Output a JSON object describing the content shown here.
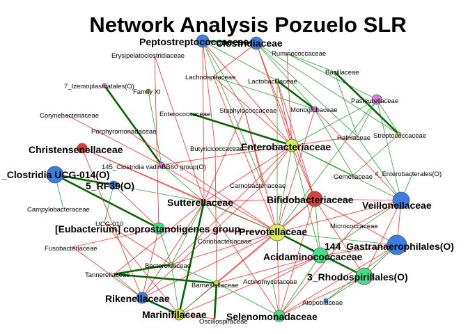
{
  "title": "Network Analysis Pozuelo SLR",
  "colors": {
    "positive_edge": "#2ca02c",
    "positive_edge_strong": "#006400",
    "negative_edge": "#ff2a2a",
    "node_border": "#555555"
  },
  "nodes": [
    {
      "id": "peptostrep",
      "label": "Peptostreptococcaceae",
      "big": true,
      "color": "#3b7de0"
    },
    {
      "id": "clostridiaceae",
      "label": "Clostridiaceae",
      "big": true,
      "color": "#3b7de0"
    },
    {
      "id": "erysipelato",
      "label": "Erysipelatoclostridiaceae",
      "big": false,
      "color": ""
    },
    {
      "id": "ruminococ",
      "label": "Ruminococcaceae",
      "big": false,
      "color": ""
    },
    {
      "id": "bacillaceae",
      "label": "Bacillaceae",
      "big": false,
      "color": ""
    },
    {
      "id": "izemoplasmatales",
      "label": "7_Izemoplasmatales(O)",
      "big": false,
      "color": "#e07be0"
    },
    {
      "id": "familyxi",
      "label": "Family XI",
      "big": false,
      "color": "#ccdd33"
    },
    {
      "id": "lachnospir",
      "label": "Lachnospiraceae",
      "big": false,
      "color": ""
    },
    {
      "id": "lactobacill",
      "label": "Lactobacillaceae",
      "big": false,
      "color": "#ccdd33"
    },
    {
      "id": "pasteurell",
      "label": "Pasteurellaceae",
      "big": false,
      "color": "#e07be0"
    },
    {
      "id": "corynebact",
      "label": "Corynebacteriaceae",
      "big": false,
      "color": ""
    },
    {
      "id": "enterococ",
      "label": "Enterococcaceae",
      "big": false,
      "color": ""
    },
    {
      "id": "staphylococ",
      "label": "Staphylococcaceae",
      "big": false,
      "color": ""
    },
    {
      "id": "monoglob",
      "label": "Monoglobaceae",
      "big": false,
      "color": "#e07be0"
    },
    {
      "id": "porphyromon",
      "label": "Porphyromonadaceae",
      "big": false,
      "color": ""
    },
    {
      "id": "hafniaceae",
      "label": "Hafniaceae",
      "big": false,
      "color": ""
    },
    {
      "id": "streptococ",
      "label": "Streptococcaceae",
      "big": false,
      "color": "#ccdd33"
    },
    {
      "id": "christensen",
      "label": "Christensenellaceae",
      "big": true,
      "color": "#e03c3c"
    },
    {
      "id": "butyricicoc",
      "label": "Butyricicoccaceae",
      "big": false,
      "color": ""
    },
    {
      "id": "enterobact",
      "label": "Enterobacteriaceae",
      "big": true,
      "color": "#d8ee55"
    },
    {
      "id": "clostvadin",
      "label": "145_Clostridia vadinBB60 group(O)",
      "big": false,
      "color": "#e07be0"
    },
    {
      "id": "gemellaceae",
      "label": "Gemellaceae",
      "big": false,
      "color": ""
    },
    {
      "id": "enterobacterales",
      "label": "4_Enterobacterales(O)",
      "big": false,
      "color": ""
    },
    {
      "id": "clostucg014",
      "label": "_Clostridia UCG-014(O)",
      "big": true,
      "color": "#3b7de0"
    },
    {
      "id": "rf39",
      "label": "5_RF39(O)",
      "big": true,
      "color": "#3b7de0"
    },
    {
      "id": "carnobact",
      "label": "Carnobacteriaceae",
      "big": false,
      "color": ""
    },
    {
      "id": "bifidobact",
      "label": "Bifidobacteriaceae",
      "big": true,
      "color": "#e03c3c"
    },
    {
      "id": "veillonell",
      "label": "Veillonellaceae",
      "big": true,
      "color": "#3b7de0"
    },
    {
      "id": "campylobact",
      "label": "Campylobacteraceae",
      "big": false,
      "color": ""
    },
    {
      "id": "sutterell",
      "label": "Sutterellaceae",
      "big": true,
      "color": ""
    },
    {
      "id": "ucg010",
      "label": "UCG-010",
      "big": false,
      "color": ""
    },
    {
      "id": "eubacterium",
      "label": "[Eubacterium] coprostanoligenes group",
      "big": true,
      "color": "#44dd88"
    },
    {
      "id": "prevotell",
      "label": "Prevotellaceae",
      "big": true,
      "color": "#d8ee55"
    },
    {
      "id": "micrococ",
      "label": "Micrococcaceae",
      "big": false,
      "color": ""
    },
    {
      "id": "coriobact",
      "label": "Coriobacteriaceae",
      "big": false,
      "color": ""
    },
    {
      "id": "fusobact",
      "label": "Fusobacteriaceae",
      "big": false,
      "color": ""
    },
    {
      "id": "gastranaero",
      "label": "144_Gastranaerophilales(O)",
      "big": true,
      "color": "#3b7de0"
    },
    {
      "id": "acidaminococ",
      "label": "Acidaminococcaceae",
      "big": true,
      "color": "#44dd88"
    },
    {
      "id": "bacteroid",
      "label": "Bacteroidaceae",
      "big": false,
      "color": "#ccdd33"
    },
    {
      "id": "rhodospir",
      "label": "3_Rhodospirillales(O)",
      "big": true,
      "color": "#44dd88"
    },
    {
      "id": "tannerell",
      "label": "Tannerellaceae",
      "big": false,
      "color": ""
    },
    {
      "id": "actinomycet",
      "label": "Actinomycetaceae",
      "big": false,
      "color": ""
    },
    {
      "id": "barnesiell",
      "label": "Barnesiellaceae",
      "big": false,
      "color": "#ccdd33"
    },
    {
      "id": "rikenell",
      "label": "Rikenellaceae",
      "big": true,
      "color": "#3b7de0"
    },
    {
      "id": "atopobi",
      "label": "Atopobiaceae",
      "big": false,
      "color": "#3b7de0"
    },
    {
      "id": "marinifil",
      "label": "Marinifilaceae",
      "big": true,
      "color": "#ccdd33"
    },
    {
      "id": "selenomonad",
      "label": "Selenomonadaceae",
      "big": true,
      "color": "#44dd88"
    },
    {
      "id": "oscillospir",
      "label": "Oscillospiraceae",
      "big": false,
      "color": ""
    }
  ],
  "edges": [
    [
      "peptostrep",
      "clostridiaceae",
      "strong"
    ],
    [
      "clostridiaceae",
      "monoglob",
      "pos"
    ],
    [
      "clostridiaceae",
      "streptococ",
      "pos"
    ],
    [
      "clostridiaceae",
      "lachnospir",
      "neg"
    ],
    [
      "clostridiaceae",
      "bifidobact",
      "neg"
    ],
    [
      "clostridiaceae",
      "enterobact",
      "neg"
    ],
    [
      "clostridiaceae",
      "hafniaceae",
      "pos"
    ],
    [
      "peptostrep",
      "staphylococ",
      "pos"
    ],
    [
      "peptostrep",
      "enterobact",
      "neg"
    ],
    [
      "peptostrep",
      "butyricicoc",
      "neg"
    ],
    [
      "peptostrep",
      "carnobact",
      "pos"
    ],
    [
      "peptostrep",
      "lactobacill",
      "pos"
    ],
    [
      "peptostrep",
      "sutterell",
      "neg"
    ],
    [
      "ruminococ",
      "bacillaceae",
      "pos"
    ],
    [
      "ruminococ",
      "pasteurell",
      "pos"
    ],
    [
      "ruminococ",
      "enterobact",
      "neg"
    ],
    [
      "bacillaceae",
      "streptococ",
      "strong"
    ],
    [
      "bacillaceae",
      "hafniaceae",
      "pos"
    ],
    [
      "lactobacill",
      "monoglob",
      "strong"
    ],
    [
      "lactobacill",
      "enterobact",
      "neg"
    ],
    [
      "lactobacill",
      "prevotell",
      "pos"
    ],
    [
      "lactobacill",
      "bifidobact",
      "neg"
    ],
    [
      "lachnospir",
      "enterobact",
      "neg"
    ],
    [
      "lachnospir",
      "prevotell",
      "neg"
    ],
    [
      "lachnospir",
      "monoglob",
      "pos"
    ],
    [
      "staphylococ",
      "carnobact",
      "neg"
    ],
    [
      "staphylococ",
      "prevotell",
      "neg"
    ],
    [
      "staphylococ",
      "sutterell",
      "neg"
    ],
    [
      "enterococ",
      "enterobact",
      "strong"
    ],
    [
      "monoglob",
      "gemellaceae",
      "pos"
    ],
    [
      "monoglob",
      "prevotell",
      "neg"
    ],
    [
      "monoglob",
      "veillonell",
      "neg"
    ],
    [
      "pasteurell",
      "streptococ",
      "pos"
    ],
    [
      "pasteurell",
      "enterobact",
      "pos"
    ],
    [
      "pasteurell",
      "veillonell",
      "pos"
    ],
    [
      "pasteurell",
      "prevotell",
      "pos"
    ],
    [
      "pasteurell",
      "hafniaceae",
      "pos"
    ],
    [
      "hafniaceae",
      "enterobact",
      "neg"
    ],
    [
      "hafniaceae",
      "veillonell",
      "pos"
    ],
    [
      "streptococ",
      "gemellaceae",
      "pos"
    ],
    [
      "enterobact",
      "prevotell",
      "pos"
    ],
    [
      "enterobact",
      "bifidobact",
      "neg"
    ],
    [
      "enterobact",
      "gemellaceae",
      "pos"
    ],
    [
      "enterobact",
      "veillonell",
      "pos"
    ],
    [
      "enterobact",
      "acidaminococ",
      "pos"
    ],
    [
      "enterobact",
      "sutterell",
      "neg"
    ],
    [
      "enterobact",
      "clostvadin",
      "neg"
    ],
    [
      "enterobact",
      "butyricicoc",
      "pos"
    ],
    [
      "enterobact",
      "bacteroid",
      "neg"
    ],
    [
      "enterobact",
      "carnobact",
      "neg"
    ],
    [
      "butyricicoc",
      "barnesiell",
      "neg"
    ],
    [
      "izemoplasmatales",
      "clostvadin",
      "strong"
    ],
    [
      "familyxi",
      "clostvadin",
      "pos"
    ],
    [
      "erysipelato",
      "eubacterium",
      "neg"
    ],
    [
      "erysipelato",
      "sutterell",
      "neg"
    ],
    [
      "clostvadin",
      "prevotell",
      "neg"
    ],
    [
      "clostvadin",
      "sutterell",
      "pos"
    ],
    [
      "clostucg014",
      "rf39",
      "strong"
    ],
    [
      "clostucg014",
      "eubacterium",
      "strong"
    ],
    [
      "clostucg014",
      "campylobact",
      "pos"
    ],
    [
      "rf39",
      "ucg010",
      "pos"
    ],
    [
      "rf39",
      "sutterell",
      "pos"
    ],
    [
      "rf39",
      "eubacterium",
      "neg"
    ],
    [
      "christensen",
      "prevotell",
      "neg"
    ],
    [
      "christensen",
      "sutterell",
      "neg"
    ],
    [
      "christensen",
      "rikenell",
      "neg"
    ],
    [
      "bifidobact",
      "prevotell",
      "neg"
    ],
    [
      "bifidobact",
      "acidaminococ",
      "pos"
    ],
    [
      "bifidobact",
      "veillonell",
      "neg"
    ],
    [
      "bifidobact",
      "gastranaero",
      "neg"
    ],
    [
      "bifidobact",
      "rhodospir",
      "neg"
    ],
    [
      "bifidobact",
      "selenomonad",
      "neg"
    ],
    [
      "bifidobact",
      "sutterell",
      "neg"
    ],
    [
      "bifidobact",
      "marinifil",
      "neg"
    ],
    [
      "veillonell",
      "acidaminococ",
      "pos"
    ],
    [
      "veillonell",
      "prevotell",
      "neg"
    ],
    [
      "veillonell",
      "gastranaero",
      "neg"
    ],
    [
      "veillonell",
      "micrococ",
      "neg"
    ],
    [
      "veillonell",
      "rhodospir",
      "neg"
    ],
    [
      "gastranaero",
      "rhodospir",
      "pos"
    ],
    [
      "gastranaero",
      "acidaminococ",
      "neg"
    ],
    [
      "gastranaero",
      "prevotell",
      "pos"
    ],
    [
      "gastranaero",
      "atopobi",
      "pos"
    ],
    [
      "gastranaero",
      "selenomonad",
      "neg"
    ],
    [
      "prevotell",
      "acidaminococ",
      "pos"
    ],
    [
      "prevotell",
      "eubacterium",
      "neg"
    ],
    [
      "prevotell",
      "rhodospir",
      "strong"
    ],
    [
      "prevotell",
      "selenomonad",
      "neg"
    ],
    [
      "prevotell",
      "bacteroid",
      "neg"
    ],
    [
      "prevotell",
      "barnesiell",
      "neg"
    ],
    [
      "prevotell",
      "rikenell",
      "neg"
    ],
    [
      "prevotell",
      "sutterell",
      "pos"
    ],
    [
      "acidaminococ",
      "selenomonad",
      "pos"
    ],
    [
      "acidaminococ",
      "rhodospir",
      "pos"
    ],
    [
      "acidaminococ",
      "barnesiell",
      "neg"
    ],
    [
      "acidaminococ",
      "actinomycet",
      "neg"
    ],
    [
      "acidaminococ",
      "marinifil",
      "neg"
    ],
    [
      "rhodospir",
      "selenomonad",
      "neg"
    ],
    [
      "rhodospir",
      "atopobi",
      "pos"
    ],
    [
      "sutterell",
      "marinifil",
      "strong"
    ],
    [
      "sutterell",
      "tannerell",
      "neg"
    ],
    [
      "sutterell",
      "coriobact",
      "pos"
    ],
    [
      "sutterell",
      "rikenell",
      "neg"
    ],
    [
      "sutterell",
      "bacteroid",
      "pos"
    ],
    [
      "eubacterium",
      "fusobact",
      "neg"
    ],
    [
      "eubacterium",
      "bacteroid",
      "pos"
    ],
    [
      "eubacterium",
      "rikenell",
      "neg"
    ],
    [
      "bacteroid",
      "tannerell",
      "strong"
    ],
    [
      "bacteroid",
      "marinifil",
      "pos"
    ],
    [
      "bacteroid",
      "barnesiell",
      "pos"
    ],
    [
      "tannerell",
      "barnesiell",
      "strong"
    ],
    [
      "tannerell",
      "rikenell",
      "pos"
    ],
    [
      "barnesiell",
      "oscillospir",
      "strong"
    ],
    [
      "barnesiell",
      "marinifil",
      "pos"
    ],
    [
      "barnesiell",
      "selenomonad",
      "pos"
    ],
    [
      "rikenell",
      "marinifil",
      "strong"
    ],
    [
      "rikenell",
      "fusobact",
      "neg"
    ],
    [
      "marinifil",
      "oscillospir",
      "neg"
    ],
    [
      "selenomonad",
      "actinomycet",
      "pos"
    ],
    [
      "ucg010",
      "marinifil",
      "neg"
    ],
    [
      "ucg010",
      "bacteroid",
      "neg"
    ],
    [
      "carnobact",
      "rikenell",
      "neg"
    ],
    [
      "micrococ",
      "selenomonad",
      "neg"
    ],
    [
      "coriobact",
      "selenomonad",
      "neg"
    ],
    [
      "enterobacterales",
      "veillonell",
      "pos"
    ],
    [
      "porphyromon",
      "prevotell",
      "neg"
    ],
    [
      "corynebact",
      "clostvadin",
      "neg"
    ]
  ]
}
